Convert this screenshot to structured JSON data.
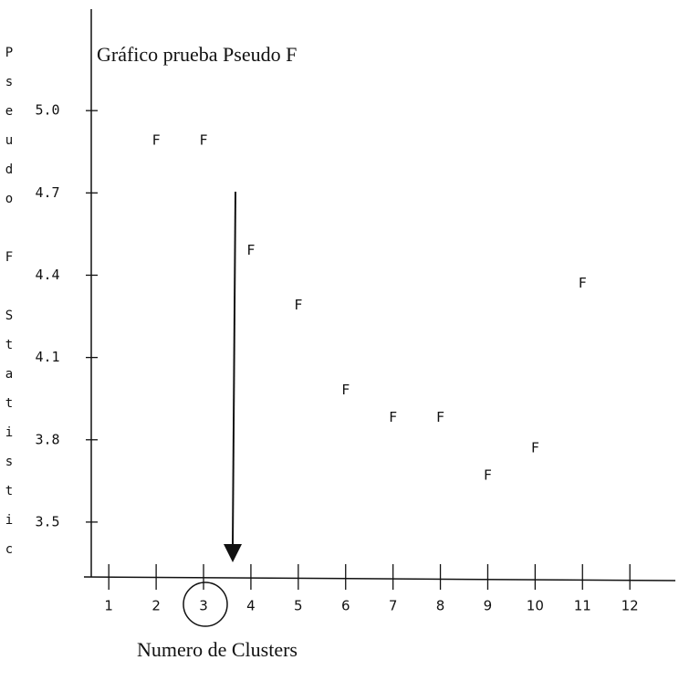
{
  "chart_data": {
    "type": "scatter",
    "title": "Gráfico prueba Pseudo F",
    "x_label": "Numero de Clusters",
    "y_label": "Pseudo F Statistic",
    "marker": "F",
    "x": [
      2,
      3,
      4,
      5,
      6,
      7,
      8,
      9,
      10,
      11
    ],
    "values": [
      4.89,
      4.89,
      4.49,
      4.29,
      3.98,
      3.88,
      3.88,
      3.67,
      3.77,
      4.37
    ],
    "xlim": [
      0.63,
      12.96
    ],
    "ylim": [
      3.3,
      5.37
    ],
    "xticks": [
      1,
      2,
      3,
      4,
      5,
      6,
      7,
      8,
      9,
      10,
      11,
      12
    ],
    "yticks": [
      {
        "value": 5,
        "label": "5.0"
      },
      4.7,
      4.4,
      4.1,
      3.8,
      3.5
    ],
    "color": "#111111"
  }
}
